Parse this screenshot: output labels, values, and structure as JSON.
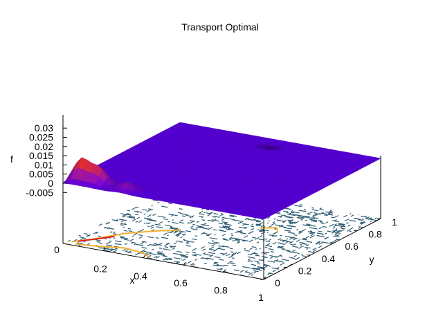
{
  "chart_data": {
    "type": "surface",
    "title": "Transport Optimal",
    "xlabel": "x",
    "ylabel": "y",
    "zlabel": "f",
    "xlim": [
      0,
      1
    ],
    "ylim": [
      0,
      1
    ],
    "zlim": [
      -0.005,
      0.03
    ],
    "x_ticks": [
      {
        "v": 0.2,
        "label": "0.2"
      },
      {
        "v": 0.4,
        "label": "0.4"
      },
      {
        "v": 0.6,
        "label": "0.6"
      },
      {
        "v": 0.8,
        "label": "0.8"
      },
      {
        "v": 1.0,
        "label": "1"
      }
    ],
    "y_ticks": [
      {
        "v": 0.0,
        "label": "0"
      },
      {
        "v": 0.2,
        "label": "0.2"
      },
      {
        "v": 0.4,
        "label": "0.4"
      },
      {
        "v": 0.6,
        "label": "0.6"
      },
      {
        "v": 0.8,
        "label": "0.8"
      },
      {
        "v": 1.0,
        "label": "1"
      }
    ],
    "z_ticks": [
      {
        "v": 0.03,
        "label": "0.03"
      },
      {
        "v": 0.025,
        "label": "0.025"
      },
      {
        "v": 0.02,
        "label": "0.02"
      },
      {
        "v": 0.015,
        "label": "0.015"
      },
      {
        "v": 0.01,
        "label": "0.01"
      },
      {
        "v": 0.005,
        "label": "0.005"
      },
      {
        "v": 0.0,
        "label": "0"
      },
      {
        "v": -0.005,
        "label": "-0.005"
      }
    ],
    "origin_label": "0",
    "peaks": [
      {
        "x": 0.05,
        "y": 0.08,
        "z": 0.012
      },
      {
        "x": 0.13,
        "y": 0.08,
        "z": 0.009
      },
      {
        "x": 0.28,
        "y": 0.06,
        "z": 0.004
      },
      {
        "x": 0.5,
        "y": 0.9,
        "z": -0.003
      }
    ],
    "surface_base_value": 0.0,
    "colors": {
      "surface_low": "#5a00e0",
      "surface_high": "#e03000",
      "surface_dip": "#1a0030",
      "contour": "#2e5c73",
      "contour_hot": "#f0b030",
      "contour_red": "#e02020",
      "axis": "#000000"
    }
  }
}
